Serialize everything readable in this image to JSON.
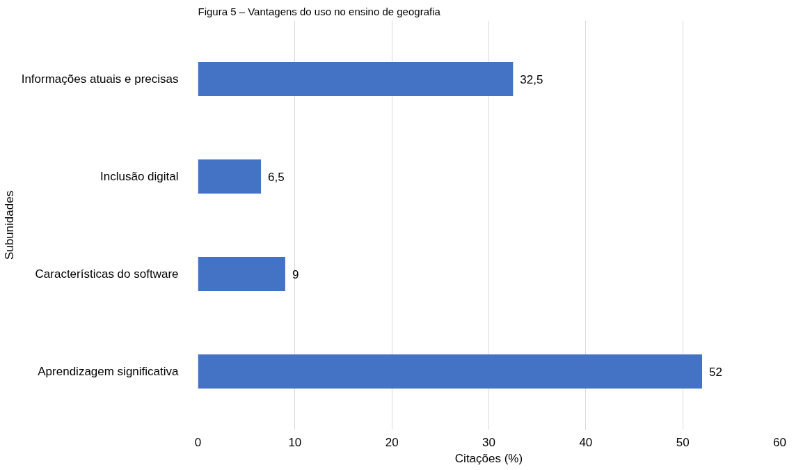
{
  "chart_data": {
    "type": "bar",
    "orientation": "horizontal",
    "title": "Figura 5 – Vantagens do uso no ensino de geografia",
    "xlabel": "Citações (%)",
    "ylabel": "Subunidades",
    "categories": [
      "Informações atuais e precisas",
      "Inclusão digital",
      "Características do software",
      "Aprendizagem significativa"
    ],
    "values": [
      32.5,
      6.5,
      9,
      52
    ],
    "value_labels": [
      "32,5",
      "6,5",
      "9",
      "52"
    ],
    "color": "#4472c4",
    "xlim": [
      0,
      60
    ],
    "xticks": [
      0,
      10,
      20,
      30,
      40,
      50,
      60
    ],
    "grid": "x"
  }
}
